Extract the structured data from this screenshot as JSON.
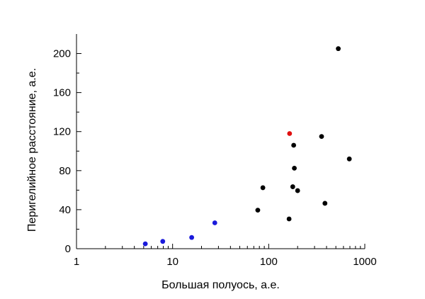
{
  "chart_data": {
    "type": "scatter",
    "title": "",
    "xlabel": "Большая полуось, а.е.",
    "ylabel": "Перигелийное расстояние, а.е.",
    "xscale": "log",
    "xlim": [
      1,
      1000
    ],
    "ylim": [
      0,
      220
    ],
    "xticks": [
      1,
      10,
      100,
      1000
    ],
    "xtick_labels": [
      "1",
      "10",
      "100",
      "1000"
    ],
    "yticks": [
      0,
      40,
      80,
      120,
      160,
      200
    ],
    "ytick_labels": [
      "0",
      "40",
      "80",
      "120",
      "160",
      "200"
    ],
    "grid": false,
    "series": [
      {
        "color": "#1a1adb",
        "points": [
          {
            "x": 5.2,
            "y": 5
          },
          {
            "x": 7.9,
            "y": 7.5
          },
          {
            "x": 15.8,
            "y": 11.5
          },
          {
            "x": 27.5,
            "y": 26.5
          }
        ]
      },
      {
        "color": "#e01010",
        "points": [
          {
            "x": 165,
            "y": 118
          }
        ]
      },
      {
        "color": "#000000",
        "points": [
          {
            "x": 77,
            "y": 39.5
          },
          {
            "x": 87,
            "y": 62.5
          },
          {
            "x": 163,
            "y": 30.5
          },
          {
            "x": 178,
            "y": 63.5
          },
          {
            "x": 182,
            "y": 106
          },
          {
            "x": 185,
            "y": 82.5
          },
          {
            "x": 200,
            "y": 59.5
          },
          {
            "x": 355,
            "y": 115
          },
          {
            "x": 385,
            "y": 46.5
          },
          {
            "x": 530,
            "y": 205
          },
          {
            "x": 690,
            "y": 92
          }
        ]
      }
    ]
  }
}
